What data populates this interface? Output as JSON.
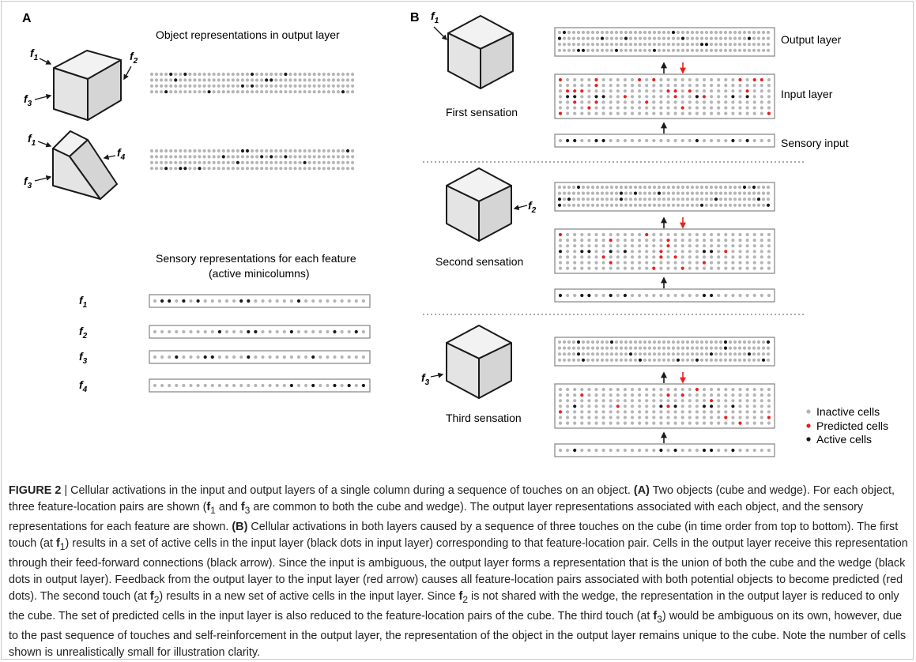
{
  "panel_a": {
    "label": "A",
    "object_title": "Object representations in output layer",
    "sensory_title_line1": "Sensory representations for each feature",
    "sensory_title_line2": "(active minicolumns)",
    "cube_features": [
      "f1",
      "f2",
      "f3"
    ],
    "wedge_features": [
      "f1",
      "f4",
      "f3"
    ],
    "feature_rows": [
      "f1",
      "f2",
      "f3",
      "f4"
    ]
  },
  "panel_b": {
    "label": "B",
    "layer_labels": {
      "output": "Output layer",
      "input": "Input layer",
      "sensory": "Sensory input"
    },
    "sensations": [
      {
        "label": "First sensation",
        "feature": "f1"
      },
      {
        "label": "Second sensation",
        "feature": "f2"
      },
      {
        "label": "Third sensation",
        "feature": "f3"
      }
    ],
    "legend": [
      {
        "label": "Inactive cells",
        "color": "#b5b5b5"
      },
      {
        "label": "Predicted cells",
        "color": "#e8201e"
      },
      {
        "label": "Active cells",
        "color": "#1a1a1a"
      }
    ]
  },
  "colors": {
    "inactive": "#b5b5b5",
    "predicted": "#e8201e",
    "active": "#1a1a1a",
    "box_border": "#8c8c8c",
    "cube_fill": "#e6e6e6"
  },
  "caption": {
    "figure_label": "FIGURE 2",
    "separator": " | ",
    "intro": "Cellular activations in the input and output layers of a single column during a sequence of touches on an object.",
    "a_label": "(A)",
    "a_text_1": "Two objects (cube and wedge). For each object, three feature-location pairs are shown (",
    "f1": "f",
    "sub1": "1",
    "a_text_2": " and ",
    "f3": "f",
    "sub3": "3",
    "a_text_3": " are common to both the cube and wedge). The output layer representations associated with each object, and the sensory representations for each feature are shown.",
    "b_label": "(B)",
    "b_text_1": "Cellular activations in both layers caused by a sequence of three touches on the cube (in time order from top to bottom). The first touch (at ",
    "b_text_2": ") results in a set of active cells in the input layer (black dots in input layer) corresponding to that feature-location pair. Cells in the output layer receive this representation through their feed-forward connections (black arrow). Since the input is ambiguous, the output layer forms a representation that is the union of both the cube and the wedge (black dots in output layer). Feedback from the output layer to the input layer (red arrow) causes all feature-location pairs associated with both potential objects to become predicted (red dots). The second touch (at ",
    "sub2": "2",
    "b_text_3": ") results in a new set of active cells in the input layer. Since ",
    "b_text_4": " is not shared with the wedge, the representation in the output layer is reduced to only the cube. The set of predicted cells in the input layer is also reduced to the feature-location pairs of the cube. The third touch (at ",
    "b_text_5": ") would be ambiguous on its own, however, due to the past sequence of touches and self-reinforcement in the output layer, the representation of the object in the output layer remains unique to the cube. Note the number of cells shown is unrealistically small for illustration clarity."
  }
}
